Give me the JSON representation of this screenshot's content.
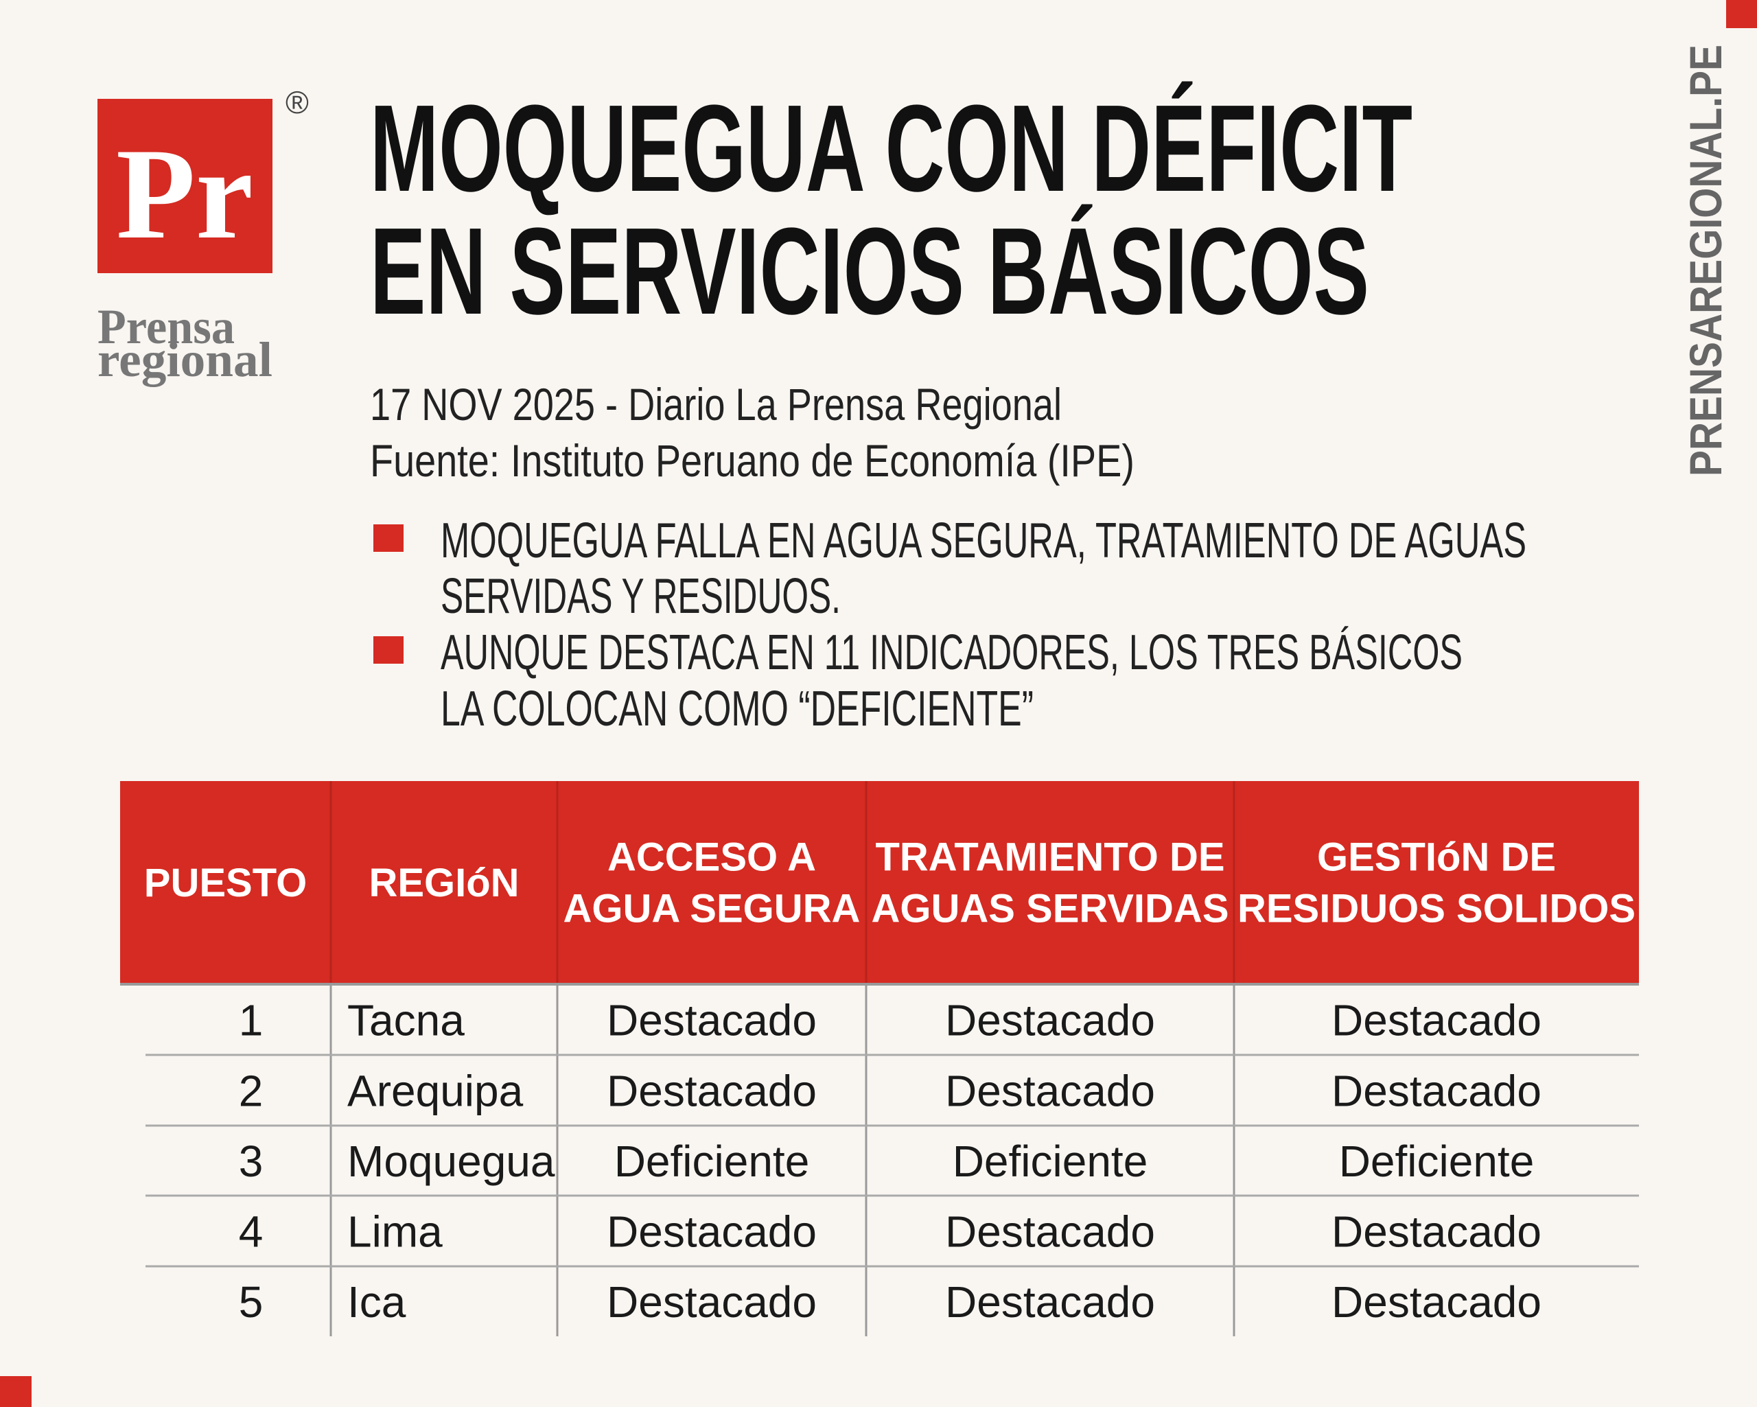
{
  "logo": {
    "mark": "Pr",
    "registered": "®",
    "name_line1": "Prensa",
    "name_line2": "regional"
  },
  "side_text": "PRENSAREGIONAL.PE",
  "header": {
    "title_line1": "MOQUEGUA CON DÉFICIT",
    "title_line2": "EN SERVICIOS BÁSICOS",
    "dateline": "17 NOV 2025 - Diario La Prensa Regional",
    "source": "Fuente: Instituto Peruano de Economía (IPE)"
  },
  "bullets": [
    [
      "MOQUEGUA FALLA EN AGUA SEGURA, TRATAMIENTO DE AGUAS",
      "SERVIDAS Y RESIDUOS."
    ],
    [
      "AUNQUE DESTACA EN 11 INDICADORES, LOS TRES BÁSICOS",
      "LA COLOCAN COMO “DEFICIENTE”"
    ]
  ],
  "table": {
    "columns": [
      [
        "PUESTO"
      ],
      [
        "REGIóN"
      ],
      [
        "ACCESO A",
        "AGUA SEGURA"
      ],
      [
        "TRATAMIENTO DE",
        "AGUAS SERVIDAS"
      ],
      [
        "GESTIóN DE",
        "RESIDUOS SOLIDOS"
      ]
    ],
    "rows": [
      [
        1,
        "Tacna",
        "Destacado",
        "Destacado",
        "Destacado"
      ],
      [
        2,
        "Arequipa",
        "Destacado",
        "Destacado",
        "Destacado"
      ],
      [
        3,
        "Moquegua",
        "Deficiente",
        "Deficiente",
        "Deficiente"
      ],
      [
        4,
        "Lima",
        "Destacado",
        "Destacado",
        "Destacado"
      ],
      [
        5,
        "Ica",
        "Destacado",
        "Destacado",
        "Destacado"
      ]
    ]
  }
}
